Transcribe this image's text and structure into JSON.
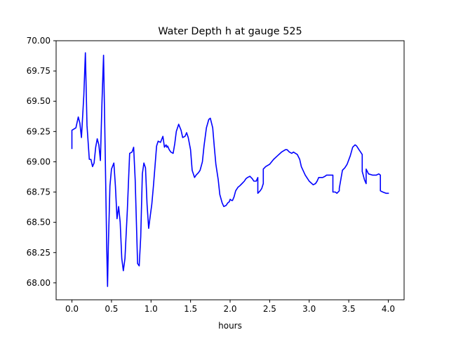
{
  "chart_data": {
    "type": "line",
    "title": "Water Depth h at gauge 525",
    "xlabel": "hours",
    "ylabel": "",
    "xlim": [
      -0.2,
      4.2
    ],
    "ylim": [
      67.86,
      70.0
    ],
    "xticks": [
      0.0,
      0.5,
      1.0,
      1.5,
      2.0,
      2.5,
      3.0,
      3.5,
      4.0
    ],
    "xtick_labels": [
      "0.0",
      "0.5",
      "1.0",
      "1.5",
      "2.0",
      "2.5",
      "3.0",
      "3.5",
      "4.0"
    ],
    "yticks": [
      68.0,
      68.25,
      68.5,
      68.75,
      69.0,
      69.25,
      69.5,
      69.75,
      70.0
    ],
    "ytick_labels": [
      "68.00",
      "68.25",
      "68.50",
      "68.75",
      "69.00",
      "69.25",
      "69.50",
      "69.75",
      "70.00"
    ],
    "grid": false,
    "series": [
      {
        "color": "#0000ff",
        "x": [
          0.0,
          0.0,
          0.05,
          0.08,
          0.1,
          0.12,
          0.15,
          0.17,
          0.19,
          0.22,
          0.24,
          0.26,
          0.28,
          0.3,
          0.32,
          0.34,
          0.36,
          0.38,
          0.4,
          0.42,
          0.44,
          0.45,
          0.46,
          0.48,
          0.5,
          0.53,
          0.55,
          0.57,
          0.59,
          0.61,
          0.63,
          0.65,
          0.67,
          0.7,
          0.73,
          0.76,
          0.78,
          0.8,
          0.83,
          0.85,
          0.87,
          0.89,
          0.91,
          0.93,
          0.95,
          0.97,
          0.99,
          1.01,
          1.03,
          1.05,
          1.07,
          1.09,
          1.12,
          1.15,
          1.17,
          1.19,
          1.2,
          1.21,
          1.23,
          1.25,
          1.28,
          1.3,
          1.32,
          1.35,
          1.38,
          1.4,
          1.43,
          1.45,
          1.47,
          1.5,
          1.52,
          1.55,
          1.57,
          1.6,
          1.62,
          1.65,
          1.67,
          1.7,
          1.73,
          1.75,
          1.78,
          1.8,
          1.82,
          1.85,
          1.87,
          1.9,
          1.92,
          1.95,
          1.97,
          1.99,
          2.0,
          2.02,
          2.03,
          2.05,
          2.07,
          2.1,
          2.12,
          2.15,
          2.18,
          2.2,
          2.22,
          2.25,
          2.28,
          2.3,
          2.33,
          2.35,
          2.35,
          2.38,
          2.4,
          2.42,
          2.42,
          2.45,
          2.5,
          2.55,
          2.6,
          2.65,
          2.7,
          2.72,
          2.75,
          2.78,
          2.8,
          2.85,
          2.88,
          2.9,
          2.95,
          3.0,
          3.05,
          3.08,
          3.1,
          3.12,
          3.15,
          3.17,
          3.2,
          3.22,
          3.25,
          3.28,
          3.3,
          3.3,
          3.33,
          3.35,
          3.38,
          3.38,
          3.42,
          3.45,
          3.48,
          3.52,
          3.55,
          3.58,
          3.6,
          3.63,
          3.65,
          3.67,
          3.67,
          3.7,
          3.72,
          3.72,
          3.75,
          3.8,
          3.85,
          3.88,
          3.9,
          3.9,
          3.93,
          3.97,
          4.0
        ],
        "y": [
          69.11,
          69.26,
          69.28,
          69.37,
          69.32,
          69.2,
          69.55,
          69.9,
          69.3,
          69.02,
          69.02,
          68.96,
          68.99,
          69.12,
          69.19,
          69.14,
          69.01,
          69.5,
          69.88,
          69.1,
          68.3,
          67.97,
          68.3,
          68.8,
          68.94,
          68.99,
          68.8,
          68.53,
          68.63,
          68.5,
          68.2,
          68.1,
          68.2,
          68.6,
          69.07,
          69.08,
          69.12,
          68.85,
          68.16,
          68.14,
          68.38,
          68.9,
          68.99,
          68.95,
          68.65,
          68.45,
          68.55,
          68.65,
          68.8,
          68.96,
          69.13,
          69.17,
          69.16,
          69.21,
          69.12,
          69.14,
          69.12,
          69.13,
          69.1,
          69.08,
          69.07,
          69.15,
          69.25,
          69.31,
          69.26,
          69.2,
          69.21,
          69.24,
          69.2,
          69.1,
          68.93,
          68.87,
          68.89,
          68.91,
          68.93,
          69.0,
          69.13,
          69.28,
          69.35,
          69.36,
          69.28,
          69.12,
          68.98,
          68.85,
          68.73,
          68.66,
          68.63,
          68.64,
          68.66,
          68.67,
          68.69,
          68.68,
          68.68,
          68.71,
          68.76,
          68.79,
          68.8,
          68.82,
          68.84,
          68.86,
          68.87,
          68.88,
          68.86,
          68.84,
          68.84,
          68.87,
          68.74,
          68.76,
          68.78,
          68.82,
          68.94,
          68.96,
          68.98,
          69.02,
          69.05,
          69.08,
          69.1,
          69.1,
          69.08,
          69.07,
          69.08,
          69.06,
          69.02,
          68.96,
          68.89,
          68.84,
          68.81,
          68.82,
          68.84,
          68.87,
          68.87,
          68.87,
          68.88,
          68.89,
          68.89,
          68.89,
          68.89,
          68.75,
          68.75,
          68.74,
          68.76,
          68.78,
          68.93,
          68.95,
          68.98,
          69.05,
          69.12,
          69.14,
          69.13,
          69.1,
          69.08,
          69.06,
          68.92,
          68.85,
          68.82,
          68.94,
          68.9,
          68.89,
          68.89,
          68.9,
          68.89,
          68.76,
          68.75,
          68.74,
          68.74
        ]
      }
    ]
  }
}
